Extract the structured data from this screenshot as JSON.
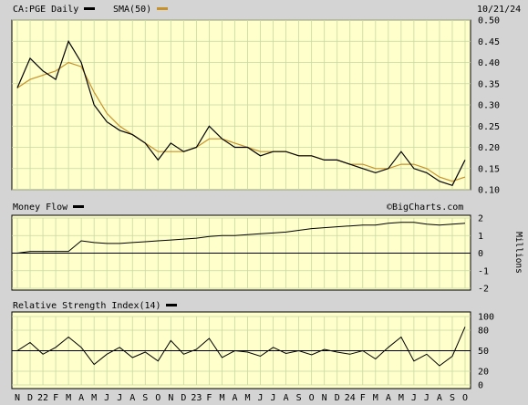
{
  "header": {
    "symbol_label": "CA:PGE Daily",
    "sma_label": "SMA(50)",
    "date": "10/21/24"
  },
  "colors": {
    "background": "#d4d4d4",
    "plot_bg": "#ffffcc",
    "grid": "#c8d8a0",
    "price_line": "#000000",
    "sma_line": "#c8922a",
    "legend_black": "#000000",
    "legend_sma": "#c8922a"
  },
  "watermark": "©BigCharts.com",
  "x_labels": [
    "N",
    "D",
    "22",
    "F",
    "M",
    "A",
    "M",
    "J",
    "J",
    "A",
    "S",
    "O",
    "N",
    "D",
    "23",
    "F",
    "M",
    "A",
    "M",
    "J",
    "J",
    "A",
    "S",
    "O",
    "N",
    "D",
    "24",
    "F",
    "M",
    "A",
    "M",
    "J",
    "J",
    "A",
    "S",
    "O"
  ],
  "chart_data": [
    {
      "type": "line",
      "title": "CA:PGE Daily",
      "ylim": [
        0.1,
        0.5
      ],
      "y_ticks": [
        "0.50",
        "0.45",
        "0.40",
        "0.35",
        "0.30",
        "0.25",
        "0.20",
        "0.15",
        "0.10"
      ],
      "x": [
        "2021-11",
        "2021-12",
        "2022-01",
        "2022-02",
        "2022-03",
        "2022-04",
        "2022-05",
        "2022-06",
        "2022-07",
        "2022-08",
        "2022-09",
        "2022-10",
        "2022-11",
        "2022-12",
        "2023-01",
        "2023-02",
        "2023-03",
        "2023-04",
        "2023-05",
        "2023-06",
        "2023-07",
        "2023-08",
        "2023-09",
        "2023-10",
        "2023-11",
        "2023-12",
        "2024-01",
        "2024-02",
        "2024-03",
        "2024-04",
        "2024-05",
        "2024-06",
        "2024-07",
        "2024-08",
        "2024-09",
        "2024-10"
      ],
      "series": [
        {
          "name": "CA:PGE Daily",
          "values": [
            0.34,
            0.41,
            0.38,
            0.36,
            0.45,
            0.4,
            0.3,
            0.26,
            0.24,
            0.23,
            0.21,
            0.17,
            0.21,
            0.19,
            0.2,
            0.25,
            0.22,
            0.2,
            0.2,
            0.18,
            0.19,
            0.19,
            0.18,
            0.18,
            0.17,
            0.17,
            0.16,
            0.15,
            0.14,
            0.15,
            0.19,
            0.15,
            0.14,
            0.12,
            0.11,
            0.17
          ]
        },
        {
          "name": "SMA(50)",
          "values": [
            0.34,
            0.36,
            0.37,
            0.38,
            0.4,
            0.39,
            0.33,
            0.28,
            0.25,
            0.23,
            0.21,
            0.19,
            0.19,
            0.19,
            0.2,
            0.22,
            0.22,
            0.21,
            0.2,
            0.19,
            0.19,
            0.19,
            0.18,
            0.18,
            0.17,
            0.17,
            0.16,
            0.16,
            0.15,
            0.15,
            0.16,
            0.16,
            0.15,
            0.13,
            0.12,
            0.13
          ]
        }
      ]
    },
    {
      "type": "line",
      "title": "Money Flow",
      "ylabel": "Millions",
      "ylim": [
        -2,
        2
      ],
      "y_ticks": [
        "2",
        "1",
        "0",
        "-1",
        "-2"
      ],
      "x": [
        "2021-11",
        "2021-12",
        "2022-01",
        "2022-02",
        "2022-03",
        "2022-04",
        "2022-05",
        "2022-06",
        "2022-07",
        "2022-08",
        "2022-09",
        "2022-10",
        "2022-11",
        "2022-12",
        "2023-01",
        "2023-02",
        "2023-03",
        "2023-04",
        "2023-05",
        "2023-06",
        "2023-07",
        "2023-08",
        "2023-09",
        "2023-10",
        "2023-11",
        "2023-12",
        "2024-01",
        "2024-02",
        "2024-03",
        "2024-04",
        "2024-05",
        "2024-06",
        "2024-07",
        "2024-08",
        "2024-09",
        "2024-10"
      ],
      "series": [
        {
          "name": "Money Flow",
          "values": [
            0.0,
            0.1,
            0.1,
            0.1,
            0.1,
            0.7,
            0.6,
            0.55,
            0.55,
            0.6,
            0.65,
            0.7,
            0.75,
            0.8,
            0.85,
            0.95,
            1.0,
            1.0,
            1.05,
            1.1,
            1.15,
            1.2,
            1.3,
            1.4,
            1.45,
            1.5,
            1.55,
            1.6,
            1.6,
            1.7,
            1.75,
            1.75,
            1.65,
            1.6,
            1.65,
            1.7
          ]
        }
      ]
    },
    {
      "type": "line",
      "title": "Relative Strength Index(14)",
      "ylim": [
        0,
        100
      ],
      "y_ticks": [
        "100",
        "80",
        "50",
        "20",
        "0"
      ],
      "x": [
        "2021-11",
        "2021-12",
        "2022-01",
        "2022-02",
        "2022-03",
        "2022-04",
        "2022-05",
        "2022-06",
        "2022-07",
        "2022-08",
        "2022-09",
        "2022-10",
        "2022-11",
        "2022-12",
        "2023-01",
        "2023-02",
        "2023-03",
        "2023-04",
        "2023-05",
        "2023-06",
        "2023-07",
        "2023-08",
        "2023-09",
        "2023-10",
        "2023-11",
        "2023-12",
        "2024-01",
        "2024-02",
        "2024-03",
        "2024-04",
        "2024-05",
        "2024-06",
        "2024-07",
        "2024-08",
        "2024-09",
        "2024-10"
      ],
      "series": [
        {
          "name": "Relative Strength Index(14)",
          "values": [
            50,
            62,
            45,
            55,
            70,
            55,
            30,
            45,
            55,
            40,
            48,
            35,
            65,
            45,
            52,
            68,
            40,
            50,
            48,
            42,
            55,
            46,
            50,
            44,
            52,
            48,
            45,
            50,
            38,
            55,
            70,
            35,
            45,
            28,
            42,
            85
          ]
        }
      ]
    }
  ]
}
